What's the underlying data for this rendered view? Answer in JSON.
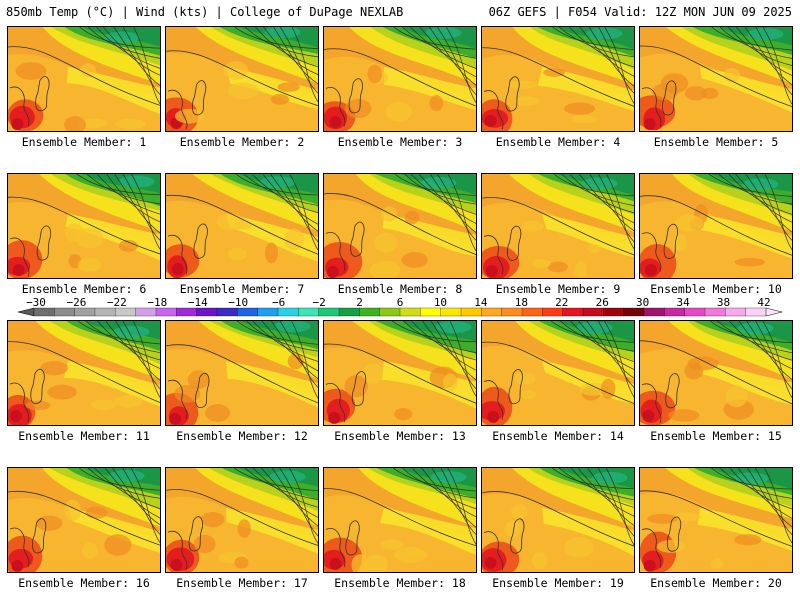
{
  "header": {
    "left_title": "850mb Temp (°C) | Wind (kts) | College of DuPage NEXLAB",
    "right_title": "06Z GEFS | F054 Valid: 12Z MON JUN 09 2025"
  },
  "members": [
    {
      "label": "Ensemble Member: 1"
    },
    {
      "label": "Ensemble Member: 2"
    },
    {
      "label": "Ensemble Member: 3"
    },
    {
      "label": "Ensemble Member: 4"
    },
    {
      "label": "Ensemble Member: 5"
    },
    {
      "label": "Ensemble Member: 6"
    },
    {
      "label": "Ensemble Member: 7"
    },
    {
      "label": "Ensemble Member: 8"
    },
    {
      "label": "Ensemble Member: 9"
    },
    {
      "label": "Ensemble Member: 10"
    },
    {
      "label": "Ensemble Member: 11"
    },
    {
      "label": "Ensemble Member: 12"
    },
    {
      "label": "Ensemble Member: 13"
    },
    {
      "label": "Ensemble Member: 14"
    },
    {
      "label": "Ensemble Member: 15"
    },
    {
      "label": "Ensemble Member: 16"
    },
    {
      "label": "Ensemble Member: 17"
    },
    {
      "label": "Ensemble Member: 18"
    },
    {
      "label": "Ensemble Member: 19"
    },
    {
      "label": "Ensemble Member: 20"
    }
  ],
  "colorbar": {
    "labels": [
      "−30",
      "−26",
      "−22",
      "−18",
      "−14",
      "−10",
      "−6",
      "−2",
      "2",
      "6",
      "10",
      "14",
      "18",
      "22",
      "26",
      "30",
      "34",
      "38",
      "42"
    ],
    "colors": [
      "#6e6e6e",
      "#8c8c8c",
      "#a0a0a0",
      "#b4b4b4",
      "#c8c8c8",
      "#d2a0e6",
      "#c864f0",
      "#a028dc",
      "#6e14c8",
      "#3c28c8",
      "#1e64e6",
      "#1ea0f0",
      "#28d2e6",
      "#3ce6b4",
      "#1ec878",
      "#14a046",
      "#3cb41e",
      "#8cc814",
      "#d2dc14",
      "#ffff00",
      "#ffe600",
      "#ffc800",
      "#ffaa1e",
      "#ff8c1e",
      "#ff6414",
      "#ff3c14",
      "#e6141e",
      "#c80a1e",
      "#a0000a",
      "#78000a",
      "#a0146e",
      "#c828a0",
      "#e646c8",
      "#f078dc",
      "#f5aaeb",
      "#fad2f5"
    ]
  }
}
